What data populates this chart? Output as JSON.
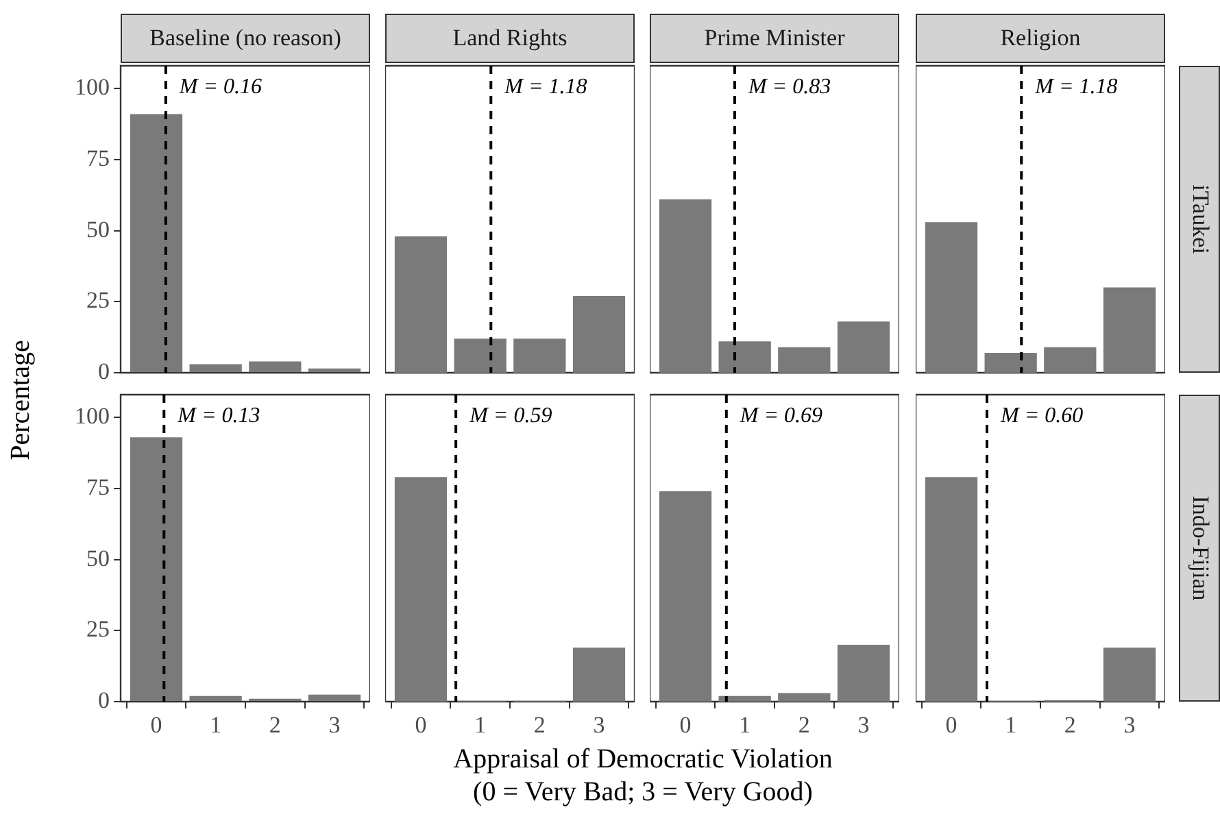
{
  "chart_data": [
    {
      "type": "bar",
      "title": "Baseline (no reason)",
      "ylabel": "Percentage",
      "x": [
        0,
        1,
        2,
        3
      ],
      "values": [
        91,
        3,
        4,
        1.5
      ],
      "color": "#7a7a7a",
      "xlim": [
        -0.6,
        3.6
      ],
      "xticks": [
        0,
        1,
        2,
        3
      ],
      "ylim": [
        0,
        108
      ],
      "yticks": [
        0,
        25,
        50,
        75,
        100
      ],
      "ref_lines": [
        {
          "axis": "x",
          "value": 0.16,
          "label": "M = 0.16",
          "line_style": "dashed",
          "color": "#000000"
        }
      ],
      "tick_labels": "y"
    },
    {
      "type": "bar",
      "title": "Land Rights",
      "x": [
        0,
        1,
        2,
        3
      ],
      "values": [
        48,
        12,
        12,
        27
      ],
      "color": "#7a7a7a",
      "xlim": [
        -0.6,
        3.6
      ],
      "xticks": [
        0,
        1,
        2,
        3
      ],
      "ylim": [
        0,
        108
      ],
      "yticks": [
        0,
        25,
        50,
        75,
        100
      ],
      "ref_lines": [
        {
          "axis": "x",
          "value": 1.18,
          "label": "M = 1.18",
          "line_style": "dashed",
          "color": "#000000"
        }
      ],
      "tick_labels": false
    },
    {
      "type": "bar",
      "title": "Prime Minister",
      "x": [
        0,
        1,
        2,
        3
      ],
      "values": [
        61,
        11,
        9,
        18
      ],
      "color": "#7a7a7a",
      "xlim": [
        -0.6,
        3.6
      ],
      "xticks": [
        0,
        1,
        2,
        3
      ],
      "ylim": [
        0,
        108
      ],
      "yticks": [
        0,
        25,
        50,
        75,
        100
      ],
      "ref_lines": [
        {
          "axis": "x",
          "value": 0.83,
          "label": "M = 0.83",
          "line_style": "dashed",
          "color": "#000000"
        }
      ],
      "tick_labels": false
    },
    {
      "type": "bar",
      "title": "Religion",
      "y2label": "iTaukei",
      "x": [
        0,
        1,
        2,
        3
      ],
      "values": [
        53,
        7,
        9,
        30
      ],
      "color": "#7a7a7a",
      "xlim": [
        -0.6,
        3.6
      ],
      "xticks": [
        0,
        1,
        2,
        3
      ],
      "ylim": [
        0,
        108
      ],
      "yticks": [
        0,
        25,
        50,
        75,
        100
      ],
      "ref_lines": [
        {
          "axis": "x",
          "value": 1.18,
          "label": "M = 1.18",
          "line_style": "dashed",
          "color": "#000000"
        }
      ],
      "tick_labels": false
    },
    {
      "type": "bar",
      "xlabel": "Appraisal of Democratic Violation\n(0 = Very Bad; 3 = Very Good)",
      "x": [
        0,
        1,
        2,
        3
      ],
      "values": [
        93,
        2,
        1,
        2.5
      ],
      "color": "#7a7a7a",
      "xlim": [
        -0.6,
        3.6
      ],
      "xticks": [
        0,
        1,
        2,
        3
      ],
      "ylim": [
        0,
        108
      ],
      "yticks": [
        0,
        25,
        50,
        75,
        100
      ],
      "ref_lines": [
        {
          "axis": "x",
          "value": 0.13,
          "label": "M = 0.13",
          "line_style": "dashed",
          "color": "#000000"
        }
      ]
    },
    {
      "type": "bar",
      "x": [
        0,
        1,
        2,
        3
      ],
      "values": [
        79,
        0.3,
        0.3,
        19
      ],
      "color": "#7a7a7a",
      "xlim": [
        -0.6,
        3.6
      ],
      "xticks": [
        0,
        1,
        2,
        3
      ],
      "ylim": [
        0,
        108
      ],
      "yticks": [
        0,
        25,
        50,
        75,
        100
      ],
      "ref_lines": [
        {
          "axis": "x",
          "value": 0.59,
          "label": "M = 0.59",
          "line_style": "dashed",
          "color": "#000000"
        }
      ],
      "tick_labels": "x"
    },
    {
      "type": "bar",
      "x": [
        0,
        1,
        2,
        3
      ],
      "values": [
        74,
        2,
        3,
        20
      ],
      "color": "#7a7a7a",
      "xlim": [
        -0.6,
        3.6
      ],
      "xticks": [
        0,
        1,
        2,
        3
      ],
      "ylim": [
        0,
        108
      ],
      "yticks": [
        0,
        25,
        50,
        75,
        100
      ],
      "ref_lines": [
        {
          "axis": "x",
          "value": 0.69,
          "label": "M = 0.69",
          "line_style": "dashed",
          "color": "#000000"
        }
      ],
      "tick_labels": "x"
    },
    {
      "type": "bar",
      "y2label": "Indo-Fijian",
      "x": [
        0,
        1,
        2,
        3
      ],
      "values": [
        79,
        0.3,
        0.5,
        19
      ],
      "color": "#7a7a7a",
      "xlim": [
        -0.6,
        3.6
      ],
      "xticks": [
        0,
        1,
        2,
        3
      ],
      "ylim": [
        0,
        108
      ],
      "yticks": [
        0,
        25,
        50,
        75,
        100
      ],
      "ref_lines": [
        {
          "axis": "x",
          "value": 0.6,
          "label": "M = 0.60",
          "line_style": "dashed",
          "color": "#000000"
        }
      ],
      "tick_labels": "x"
    }
  ]
}
